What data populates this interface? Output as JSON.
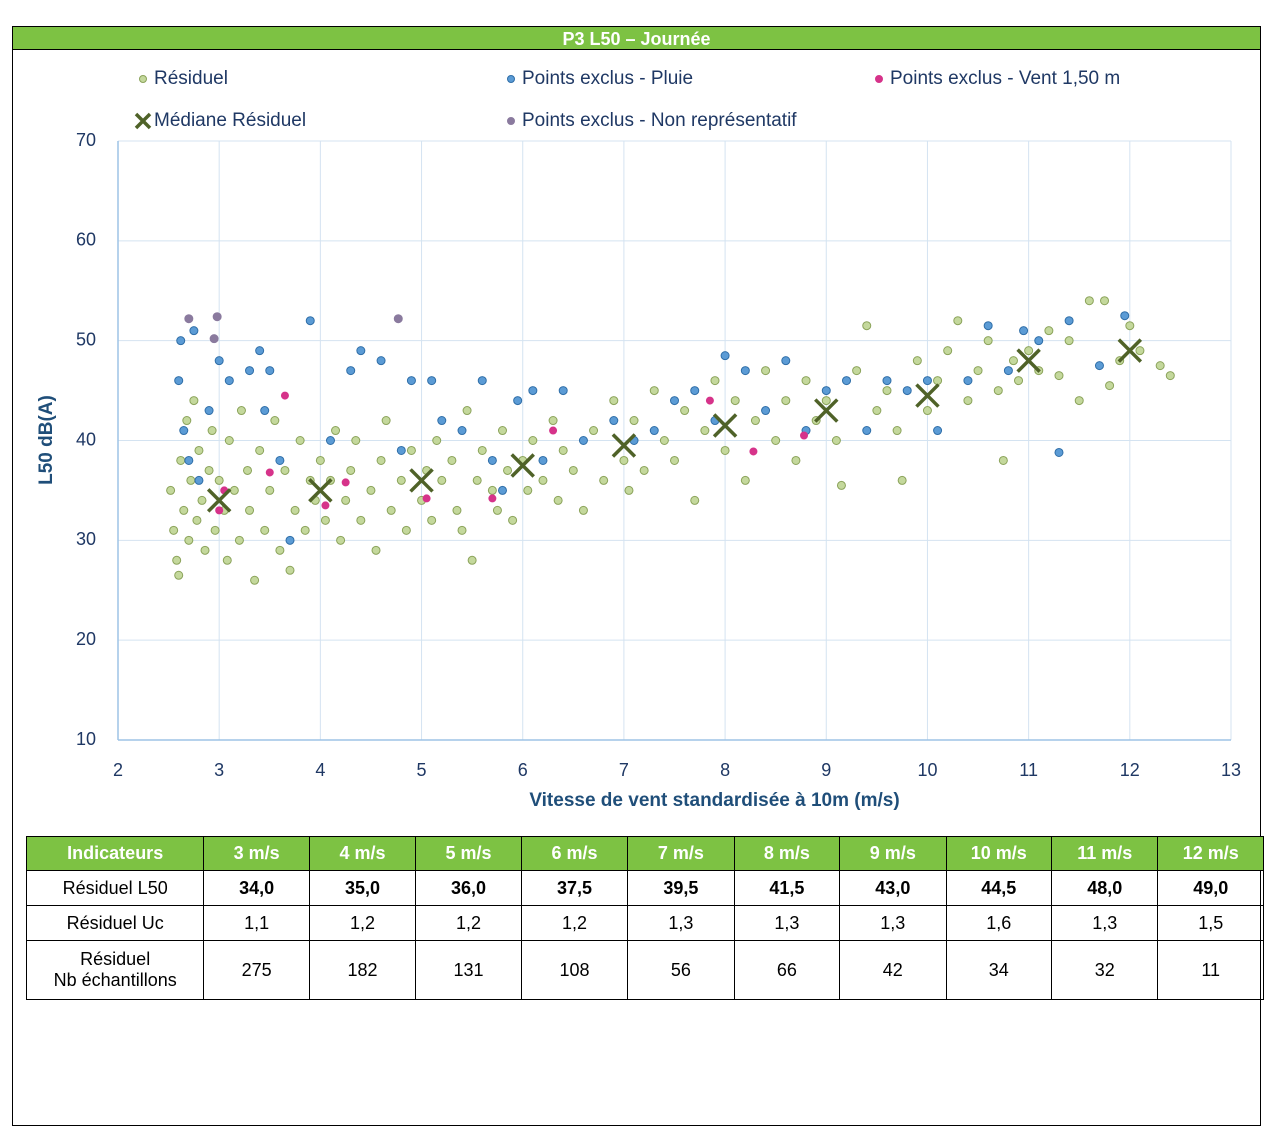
{
  "chart_data": {
    "type": "scatter",
    "title": "P3 L50 – Journée",
    "x_label": "Vitesse de vent standardisée à 10m (m/s)",
    "y_label": "L50 dB(A)",
    "xlim": [
      2,
      13
    ],
    "xticks": [
      2,
      3,
      4,
      5,
      6,
      7,
      8,
      9,
      10,
      11,
      12,
      13
    ],
    "ylim": [
      10,
      70
    ],
    "yticks": [
      10,
      20,
      30,
      40,
      50,
      60,
      70
    ],
    "grid": true,
    "series": [
      {
        "name": "Résiduel",
        "color": "#c4d89c",
        "x": [
          2.52,
          2.55,
          2.58,
          2.6,
          2.62,
          2.65,
          2.68,
          2.7,
          2.72,
          2.75,
          2.78,
          2.8,
          2.83,
          2.86,
          2.9,
          2.93,
          2.96,
          3.0,
          3.05,
          3.08,
          3.1,
          3.15,
          3.2,
          3.22,
          3.28,
          3.3,
          3.35,
          3.4,
          3.45,
          3.5,
          3.55,
          3.6,
          3.65,
          3.7,
          3.75,
          3.8,
          3.85,
          3.9,
          3.95,
          4.0,
          4.05,
          4.1,
          4.15,
          4.2,
          4.25,
          4.3,
          4.35,
          4.4,
          4.5,
          4.55,
          4.6,
          4.65,
          4.7,
          4.8,
          4.85,
          4.9,
          5.0,
          5.05,
          5.1,
          5.15,
          5.2,
          5.3,
          5.35,
          5.4,
          5.45,
          5.5,
          5.55,
          5.6,
          5.7,
          5.75,
          5.8,
          5.85,
          5.9,
          6.0,
          6.05,
          6.1,
          6.2,
          6.3,
          6.35,
          6.4,
          6.5,
          6.6,
          6.7,
          6.8,
          6.9,
          7.0,
          7.05,
          7.1,
          7.2,
          7.3,
          7.4,
          7.5,
          7.6,
          7.7,
          7.8,
          7.9,
          8.0,
          8.1,
          8.2,
          8.3,
          8.4,
          8.5,
          8.6,
          8.7,
          8.8,
          8.9,
          9.0,
          9.1,
          9.15,
          9.3,
          9.4,
          9.5,
          9.6,
          9.7,
          9.75,
          9.9,
          10.0,
          10.1,
          10.2,
          10.3,
          10.4,
          10.5,
          10.6,
          10.7,
          10.75,
          10.85,
          10.9,
          11.0,
          11.1,
          11.2,
          11.3,
          11.4,
          11.5,
          11.6,
          11.75,
          11.8,
          11.9,
          12.0,
          12.1,
          12.3,
          12.4
        ],
        "values": [
          35,
          31,
          28,
          26.5,
          38,
          33,
          42,
          30,
          36,
          44,
          32,
          39,
          34,
          29,
          37,
          41,
          31,
          36,
          33,
          28,
          40,
          35,
          30,
          43,
          37,
          33,
          26,
          39,
          31,
          35,
          42,
          29,
          37,
          27,
          33,
          40,
          31,
          36,
          34,
          38,
          32,
          36,
          41,
          30,
          34,
          37,
          40,
          32,
          35,
          29,
          38,
          42,
          33,
          36,
          31,
          39,
          34,
          37,
          32,
          40,
          36,
          38,
          33,
          31,
          43,
          28,
          36,
          39,
          35,
          33,
          41,
          37,
          32,
          38,
          35,
          40,
          36,
          42,
          34,
          39,
          37,
          33,
          41,
          36,
          44,
          38,
          35,
          42,
          37,
          45,
          40,
          38,
          43,
          34,
          41,
          46,
          39,
          44,
          36,
          42,
          47,
          40,
          44,
          38,
          46,
          42,
          44,
          40,
          35.5,
          47,
          51.5,
          43,
          45,
          41,
          36,
          48,
          43,
          46,
          49,
          52,
          44,
          47,
          50,
          45,
          38,
          48,
          46,
          49,
          47,
          51,
          46.5,
          50,
          44,
          54,
          54,
          45.5,
          48,
          51.5,
          49,
          47.5,
          46.5
        ]
      },
      {
        "name": "Points exclus - Pluie",
        "color": "#5b9bd5",
        "x": [
          2.6,
          2.62,
          2.65,
          2.7,
          2.75,
          2.8,
          2.9,
          3.0,
          3.1,
          3.3,
          3.4,
          3.45,
          3.5,
          3.6,
          3.7,
          3.9,
          4.1,
          4.3,
          4.4,
          4.6,
          4.8,
          4.9,
          5.1,
          5.2,
          5.4,
          5.6,
          5.7,
          5.8,
          5.95,
          6.1,
          6.2,
          6.4,
          6.6,
          6.9,
          7.1,
          7.3,
          7.5,
          7.7,
          7.9,
          8.0,
          8.2,
          8.4,
          8.6,
          8.8,
          9.0,
          9.2,
          9.4,
          9.6,
          9.8,
          10.0,
          10.1,
          10.4,
          10.6,
          10.8,
          10.95,
          11.1,
          11.3,
          11.4,
          11.7,
          11.95
        ],
        "values": [
          46,
          50,
          41,
          38,
          51,
          36,
          43,
          48,
          46,
          47,
          49,
          43,
          47,
          38,
          30,
          52,
          40,
          47,
          49,
          48,
          39,
          46,
          46,
          42,
          41,
          46,
          38,
          35,
          44,
          45,
          38,
          45,
          40,
          42,
          40,
          41,
          44,
          45,
          42,
          48.5,
          47,
          43,
          48,
          41,
          45,
          46,
          41,
          46,
          45,
          46,
          41,
          46,
          51.5,
          47,
          51,
          50,
          38.8,
          52,
          47.5,
          52.5
        ]
      },
      {
        "name": "Points exclus - Vent 1,50 m",
        "color": "#d6338a",
        "x": [
          3.0,
          3.05,
          3.5,
          3.65,
          4.05,
          4.25,
          5.05,
          5.7,
          6.3,
          7.85,
          8.28,
          8.78
        ],
        "values": [
          33,
          35,
          36.8,
          44.5,
          33.5,
          35.8,
          34.2,
          34.2,
          41,
          44,
          38.9,
          40.5
        ]
      },
      {
        "name": "Médiane Résiduel",
        "color": "#4f6228",
        "marker": "x",
        "x": [
          3,
          4,
          5,
          6,
          7,
          8,
          9,
          10,
          11,
          12
        ],
        "values": [
          34,
          35,
          36,
          37.5,
          39.5,
          41.5,
          43,
          44.5,
          48,
          49
        ]
      },
      {
        "name": "Points exclus - Non représentatif",
        "color": "#8a7a9e",
        "x": [
          2.7,
          2.95,
          2.98,
          4.77
        ],
        "values": [
          52.2,
          50.2,
          52.4,
          52.2
        ]
      }
    ]
  },
  "table": {
    "header": [
      "Indicateurs",
      "3 m/s",
      "4 m/s",
      "5 m/s",
      "6 m/s",
      "7 m/s",
      "8 m/s",
      "9 m/s",
      "10 m/s",
      "11 m/s",
      "12 m/s"
    ],
    "rows": [
      [
        "Résiduel L50",
        "34,0",
        "35,0",
        "36,0",
        "37,5",
        "39,5",
        "41,5",
        "43,0",
        "44,5",
        "48,0",
        "49,0"
      ],
      [
        "Résiduel Uc",
        "1,1",
        "1,2",
        "1,2",
        "1,2",
        "1,3",
        "1,3",
        "1,3",
        "1,6",
        "1,3",
        "1,5"
      ],
      [
        "Résiduel\nNb échantillons",
        "275",
        "182",
        "131",
        "108",
        "56",
        "66",
        "42",
        "34",
        "32",
        "11"
      ]
    ]
  }
}
